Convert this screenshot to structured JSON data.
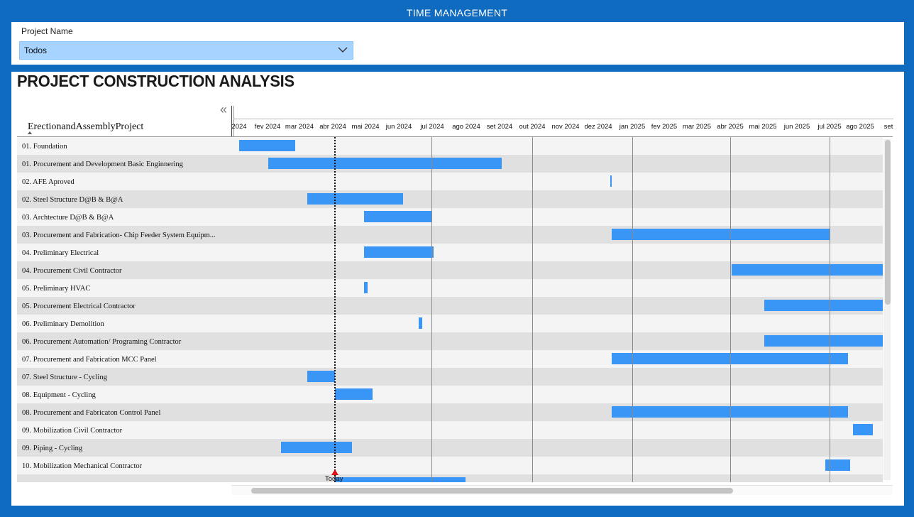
{
  "header": {
    "title": "TIME MANAGEMENT"
  },
  "filter": {
    "label": "Project Name",
    "value": "Todos",
    "chevron_icon": "chevron-down-icon"
  },
  "main": {
    "title": "PROJECT CONSTRUCTION ANALYSIS",
    "collapse_icon": "«",
    "column_header": "ErectionandAssemblyProject",
    "today_label": "Today",
    "months": [
      "2024",
      "fev 2024",
      "mar 2024",
      "abr 2024",
      "mai 2024",
      "jun 2024",
      "jul 2024",
      "ago 2024",
      "set 2024",
      "out 2024",
      "nov 2024",
      "dez 2024",
      "jan 2025",
      "fev 2025",
      "mar 2025",
      "abr 2025",
      "mai 2025",
      "jun 2025",
      "jul 2025",
      "ago 2025",
      "set"
    ],
    "rows": [
      {
        "label": "01. Foundation"
      },
      {
        "label": "01. Procurement and Development Basic Enginnering"
      },
      {
        "label": "02. AFE Aproved"
      },
      {
        "label": "02. Steel Structure D@B & B@A"
      },
      {
        "label": "03. Archtecture D@B & B@A"
      },
      {
        "label": "03. Procurement and Fabrication- Chip Feeder System Equipm..."
      },
      {
        "label": "04. Preliminary Electrical"
      },
      {
        "label": "04. Procurement Civil Contractor"
      },
      {
        "label": "05. Preliminary HVAC"
      },
      {
        "label": "05. Procurement Electrical Contractor"
      },
      {
        "label": "06. Preliminary Demolition"
      },
      {
        "label": "06. Procurement Automation/ Programing Contractor"
      },
      {
        "label": "07. Procurement and Fabrication MCC Panel"
      },
      {
        "label": "07. Steel Structure - Cycling"
      },
      {
        "label": "08. Equipment - Cycling"
      },
      {
        "label": "08. Procurement and Fabricaton Control Panel"
      },
      {
        "label": "09. Mobilization Civil Contractor"
      },
      {
        "label": "09. Piping - Cycling"
      },
      {
        "label": "10. Mobilization Mechanical Contractor"
      },
      {
        "label": ""
      }
    ]
  },
  "colors": {
    "bar": "#3a96f6",
    "brand": "#0e6bbf",
    "filter_bg": "#a6d3ff",
    "today_marker": "#e01010"
  }
}
